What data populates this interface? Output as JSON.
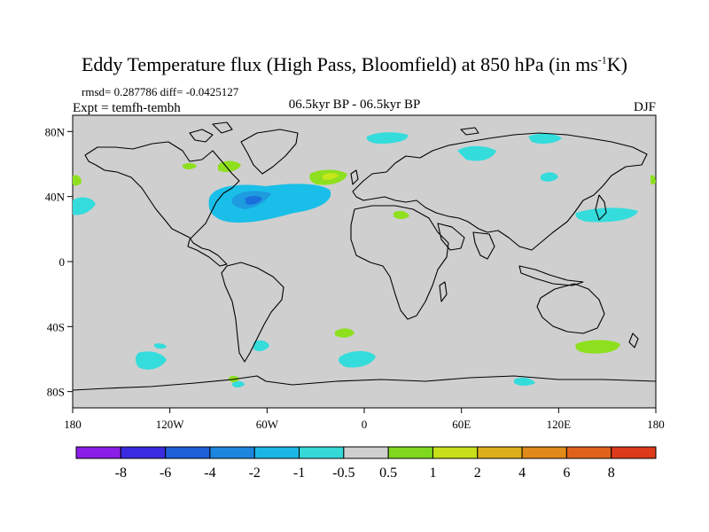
{
  "title": {
    "main": "Eddy Temperature flux (High Pass, Bloomfield) at 850 hPa (in ms",
    "sup": "-1",
    "tail": "K)"
  },
  "stats_line": "rmsd= 0.287786 diff= -0.0425127",
  "left_label": "Expt = temfh-tembh",
  "center_label": "06.5kyr BP - 06.5kyr BP",
  "right_label": "DJF",
  "map": {
    "lon_range": [
      -180,
      180
    ],
    "lat_range": [
      -90,
      90
    ],
    "x_ticks": [
      {
        "lon": -180,
        "label": "180"
      },
      {
        "lon": -120,
        "label": "120W"
      },
      {
        "lon": -60,
        "label": "60W"
      },
      {
        "lon": 0,
        "label": "0"
      },
      {
        "lon": 60,
        "label": "60E"
      },
      {
        "lon": 120,
        "label": "120E"
      },
      {
        "lon": 180,
        "label": "180"
      }
    ],
    "y_ticks": [
      {
        "lat": 80,
        "label": "80N"
      },
      {
        "lat": 40,
        "label": "40N"
      },
      {
        "lat": 0,
        "label": "0"
      },
      {
        "lat": -40,
        "label": "40S"
      },
      {
        "lat": -80,
        "label": "80S"
      }
    ],
    "colors": {
      "background": "#cfcfcf",
      "teal": "#35dcdc",
      "cyan": "#19bfe8",
      "blue": "#1f9be0",
      "deepblue": "#1a6fdc",
      "green": "#8ee01e",
      "yellow": "#c6e81b"
    }
  },
  "colorbar": {
    "colors": [
      "#8a1ee6",
      "#3a2be0",
      "#1e5ed6",
      "#1c86df",
      "#1bb6e6",
      "#36d8d8",
      "#cfcfcf",
      "#7fd81e",
      "#c8e01a",
      "#dcb01a",
      "#e08a1a",
      "#e0621a",
      "#dc3a1a"
    ],
    "labels": [
      "-8",
      "-6",
      "-4",
      "-2",
      "-1",
      "-0.5",
      "0.5",
      "1",
      "2",
      "4",
      "6",
      "8"
    ]
  }
}
